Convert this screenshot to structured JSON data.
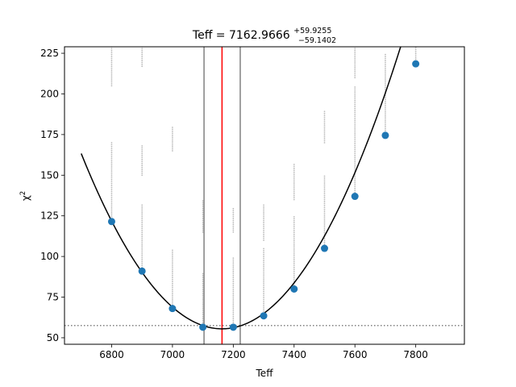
{
  "chart_data": {
    "type": "scatter",
    "title": {
      "prefix": "Teff = 7162.9666",
      "upper": "+59.9255",
      "lower": "−59.1402"
    },
    "xlabel": "Teff",
    "ylabel": "χ",
    "ylabel_sup": "2",
    "xlim": [
      6645,
      7960
    ],
    "ylim": [
      46,
      229
    ],
    "xticks": [
      6800,
      7000,
      7200,
      7400,
      7600,
      7800
    ],
    "yticks": [
      50,
      75,
      100,
      125,
      150,
      175,
      200,
      225
    ],
    "grid": false,
    "legend": "none",
    "points": {
      "x": [
        6800,
        6900,
        7000,
        7100,
        7200,
        7300,
        7400,
        7500,
        7600,
        7700,
        7800
      ],
      "y": [
        121.5,
        91,
        68,
        56.5,
        56.5,
        63.5,
        80,
        105,
        137,
        174.5,
        218.5
      ],
      "color": "#1f77b4"
    },
    "fit_curve": {
      "vertex_x": 7163,
      "vertex_y": 55.5,
      "coefficient": 0.000503,
      "x_range": [
        6700,
        7810
      ],
      "color": "#000000"
    },
    "best_value_line": {
      "x": 7162.9666,
      "color": "#ff0000"
    },
    "uncertainty_lines": {
      "x": [
        7103.83,
        7222.89
      ],
      "color": "#808080"
    },
    "min_chi2_line": {
      "y": 57.5,
      "color": "#808080",
      "style": "dotted"
    },
    "grey_samples": {
      "color": "#bbbbbb",
      "columns": [
        {
          "x": 6800,
          "ranges": [
            [
              122,
              170
            ],
            [
              205,
              229
            ]
          ]
        },
        {
          "x": 6900,
          "ranges": [
            [
              92,
              132
            ],
            [
              150,
              168
            ],
            [
              217,
              229
            ]
          ]
        },
        {
          "x": 7000,
          "ranges": [
            [
              69,
              105
            ],
            [
              165,
              180
            ]
          ]
        },
        {
          "x": 7100,
          "ranges": [
            [
              57,
              90
            ],
            [
              115,
              135
            ]
          ]
        },
        {
          "x": 7200,
          "ranges": [
            [
              57,
              100
            ],
            [
              115,
              130
            ]
          ]
        },
        {
          "x": 7300,
          "ranges": [
            [
              64,
              105
            ],
            [
              110,
              132
            ]
          ]
        },
        {
          "x": 7400,
          "ranges": [
            [
              80,
              125
            ],
            [
              135,
              157
            ]
          ]
        },
        {
          "x": 7500,
          "ranges": [
            [
              105,
              150
            ],
            [
              170,
              190
            ]
          ]
        },
        {
          "x": 7600,
          "ranges": [
            [
              137,
              205
            ],
            [
              210,
              229
            ]
          ]
        },
        {
          "x": 7700,
          "ranges": [
            [
              175,
              225
            ]
          ]
        },
        {
          "x": 7800,
          "ranges": [
            [
              219,
              229
            ]
          ]
        }
      ]
    }
  }
}
